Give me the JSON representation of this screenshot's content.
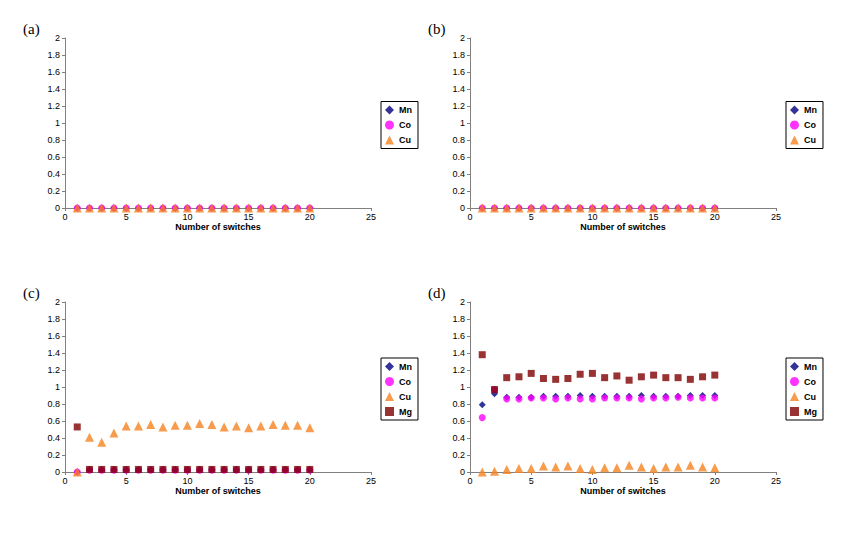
{
  "chart_data": [
    {
      "type": "scatter",
      "title": "(a)",
      "xlabel": "Number of switches",
      "x": [
        1,
        2,
        3,
        4,
        5,
        6,
        7,
        8,
        9,
        10,
        11,
        12,
        13,
        14,
        15,
        16,
        17,
        18,
        19,
        20
      ],
      "xlim": [
        0,
        25
      ],
      "xticks": [
        0,
        5,
        10,
        15,
        20,
        25
      ],
      "ylim": [
        0,
        2
      ],
      "yticks": [
        0,
        0.2,
        0.4,
        0.6,
        0.8,
        1,
        1.2,
        1.4,
        1.6,
        1.8,
        2
      ],
      "grid": false,
      "legend": "right",
      "series": [
        {
          "name": "Mn",
          "color": "#000080",
          "marker": "diamond",
          "values": [
            0,
            0,
            0,
            0,
            0,
            0,
            0,
            0,
            0,
            0,
            0,
            0,
            0,
            0,
            0,
            0,
            0,
            0,
            0,
            0
          ]
        },
        {
          "name": "Co",
          "color": "#ff00ff",
          "marker": "circle",
          "values": [
            0,
            0,
            0,
            0,
            0,
            0,
            0,
            0,
            0,
            0,
            0,
            0,
            0,
            0,
            0,
            0,
            0,
            0,
            0,
            0
          ]
        },
        {
          "name": "Cu",
          "color": "#f58220",
          "marker": "triangle",
          "values": [
            0,
            0,
            0,
            0,
            0,
            0,
            0,
            0,
            0,
            0,
            0,
            0,
            0,
            0,
            0,
            0,
            0,
            0,
            0,
            0
          ]
        }
      ]
    },
    {
      "type": "scatter",
      "title": "(b)",
      "xlabel": "Number of switches",
      "x": [
        1,
        2,
        3,
        4,
        5,
        6,
        7,
        8,
        9,
        10,
        11,
        12,
        13,
        14,
        15,
        16,
        17,
        18,
        19,
        20
      ],
      "xlim": [
        0,
        25
      ],
      "xticks": [
        0,
        5,
        10,
        15,
        20,
        25
      ],
      "ylim": [
        0,
        2
      ],
      "yticks": [
        0,
        0.2,
        0.4,
        0.6,
        0.8,
        1,
        1.2,
        1.4,
        1.6,
        1.8,
        2
      ],
      "grid": false,
      "legend": "right",
      "series": [
        {
          "name": "Mn",
          "color": "#000080",
          "marker": "diamond",
          "values": [
            0,
            0,
            0,
            0,
            0,
            0,
            0,
            0,
            0,
            0,
            0,
            0,
            0,
            0,
            0,
            0,
            0,
            0,
            0,
            0
          ]
        },
        {
          "name": "Co",
          "color": "#ff00ff",
          "marker": "circle",
          "values": [
            0,
            0,
            0,
            0,
            0,
            0,
            0,
            0,
            0,
            0,
            0,
            0,
            0,
            0,
            0,
            0,
            0,
            0,
            0,
            0
          ]
        },
        {
          "name": "Cu",
          "color": "#f58220",
          "marker": "triangle",
          "values": [
            0,
            0,
            0,
            0,
            0,
            0,
            0,
            0,
            0,
            0,
            0,
            0,
            0,
            0,
            0,
            0,
            0,
            0,
            0,
            0
          ]
        }
      ]
    },
    {
      "type": "scatter",
      "title": "(c)",
      "xlabel": "Number of switches",
      "x": [
        1,
        2,
        3,
        4,
        5,
        6,
        7,
        8,
        9,
        10,
        11,
        12,
        13,
        14,
        15,
        16,
        17,
        18,
        19,
        20
      ],
      "xlim": [
        0,
        25
      ],
      "xticks": [
        0,
        5,
        10,
        15,
        20,
        25
      ],
      "ylim": [
        0,
        2
      ],
      "yticks": [
        0,
        0.2,
        0.4,
        0.6,
        0.8,
        1,
        1.2,
        1.4,
        1.6,
        1.8,
        2
      ],
      "grid": false,
      "legend": "right",
      "series": [
        {
          "name": "Mn",
          "color": "#000080",
          "marker": "diamond",
          "values": [
            0,
            0.03,
            0.03,
            0.03,
            0.03,
            0.03,
            0.03,
            0.03,
            0.03,
            0.03,
            0.03,
            0.03,
            0.03,
            0.03,
            0.03,
            0.03,
            0.03,
            0.03,
            0.03,
            0.03
          ]
        },
        {
          "name": "Co",
          "color": "#ff00ff",
          "marker": "circle",
          "values": [
            0,
            0.02,
            0.02,
            0.02,
            0.02,
            0.02,
            0.02,
            0.02,
            0.02,
            0.02,
            0.02,
            0.02,
            0.02,
            0.02,
            0.02,
            0.02,
            0.02,
            0.02,
            0.02,
            0.02
          ]
        },
        {
          "name": "Cu",
          "color": "#f58220",
          "marker": "triangle",
          "values": [
            0,
            0.41,
            0.35,
            0.46,
            0.54,
            0.54,
            0.56,
            0.53,
            0.55,
            0.55,
            0.57,
            0.56,
            0.53,
            0.54,
            0.52,
            0.54,
            0.56,
            0.55,
            0.55,
            0.52
          ]
        },
        {
          "name": "Mg",
          "color": "#800000",
          "marker": "square",
          "values": [
            0.53,
            0.03,
            0.03,
            0.03,
            0.03,
            0.03,
            0.03,
            0.03,
            0.03,
            0.03,
            0.03,
            0.03,
            0.03,
            0.03,
            0.03,
            0.03,
            0.03,
            0.03,
            0.03,
            0.03
          ]
        }
      ]
    },
    {
      "type": "scatter",
      "title": "(d)",
      "xlabel": "Number of switches",
      "x": [
        1,
        2,
        3,
        4,
        5,
        6,
        7,
        8,
        9,
        10,
        11,
        12,
        13,
        14,
        15,
        16,
        17,
        18,
        19,
        20
      ],
      "xlim": [
        0,
        25
      ],
      "xticks": [
        0,
        5,
        10,
        15,
        20,
        25
      ],
      "ylim": [
        0,
        2
      ],
      "yticks": [
        0,
        0.2,
        0.4,
        0.6,
        0.8,
        1,
        1.2,
        1.4,
        1.6,
        1.8,
        2
      ],
      "grid": false,
      "legend": "right",
      "series": [
        {
          "name": "Mn",
          "color": "#000080",
          "marker": "diamond",
          "values": [
            0.79,
            0.92,
            0.88,
            0.88,
            0.88,
            0.89,
            0.89,
            0.89,
            0.9,
            0.89,
            0.89,
            0.89,
            0.89,
            0.9,
            0.89,
            0.89,
            0.89,
            0.9,
            0.9,
            0.9
          ]
        },
        {
          "name": "Co",
          "color": "#ff00ff",
          "marker": "circle",
          "values": [
            0.64,
            0.97,
            0.86,
            0.86,
            0.87,
            0.87,
            0.86,
            0.87,
            0.86,
            0.86,
            0.87,
            0.87,
            0.87,
            0.86,
            0.87,
            0.87,
            0.88,
            0.87,
            0.87,
            0.87
          ]
        },
        {
          "name": "Cu",
          "color": "#f58220",
          "marker": "triangle",
          "values": [
            0,
            0.01,
            0.03,
            0.04,
            0.04,
            0.07,
            0.06,
            0.07,
            0.04,
            0.03,
            0.05,
            0.05,
            0.08,
            0.06,
            0.04,
            0.06,
            0.06,
            0.08,
            0.06,
            0.05
          ]
        },
        {
          "name": "Mg",
          "color": "#800000",
          "marker": "square",
          "values": [
            1.38,
            0.97,
            1.11,
            1.12,
            1.16,
            1.1,
            1.09,
            1.1,
            1.15,
            1.16,
            1.11,
            1.13,
            1.08,
            1.12,
            1.14,
            1.11,
            1.11,
            1.09,
            1.12,
            1.14
          ]
        }
      ]
    }
  ]
}
